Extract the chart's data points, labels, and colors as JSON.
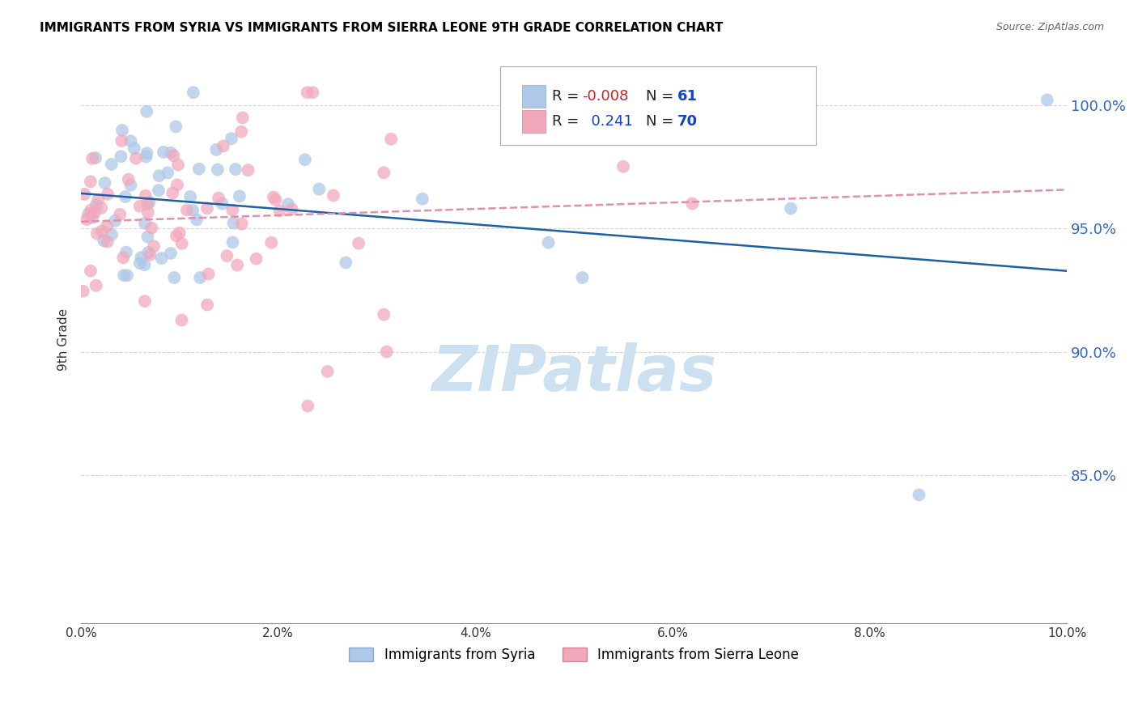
{
  "title": "IMMIGRANTS FROM SYRIA VS IMMIGRANTS FROM SIERRA LEONE 9TH GRADE CORRELATION CHART",
  "source": "Source: ZipAtlas.com",
  "ylabel": "9th Grade",
  "xlim": [
    0.0,
    10.0
  ],
  "ylim": [
    79.0,
    102.0
  ],
  "R_syria": -0.008,
  "N_syria": 61,
  "R_sierra": 0.241,
  "N_sierra": 70,
  "color_syria": "#adc8e8",
  "color_sierra": "#f2a8bb",
  "trend_syria_color": "#1a5fa8",
  "trend_sierra_color": "#e090a8",
  "ytick_vals": [
    85.0,
    90.0,
    95.0,
    100.0
  ],
  "ytick_labels": [
    "85.0%",
    "90.0%",
    "95.0%",
    "100.0%"
  ],
  "xtick_vals": [
    0,
    2,
    4,
    6,
    8,
    10
  ],
  "xtick_labels": [
    "0.0%",
    "2.0%",
    "4.0%",
    "6.0%",
    "8.0%",
    "10.0%"
  ],
  "watermark": "ZIPatlas",
  "watermark_color": "#cce0f0",
  "legend_color_syria": "#adc8e8",
  "legend_color_sierra": "#f2a8bb",
  "legend_R_syria_color": "#cc2222",
  "legend_R_sierra_color": "#1144cc",
  "legend_N_color": "#1144cc",
  "grid_color": "#cccccc",
  "bottom_legend_label_syria": "Immigrants from Syria",
  "bottom_legend_label_sierra": "Immigrants from Sierra Leone"
}
